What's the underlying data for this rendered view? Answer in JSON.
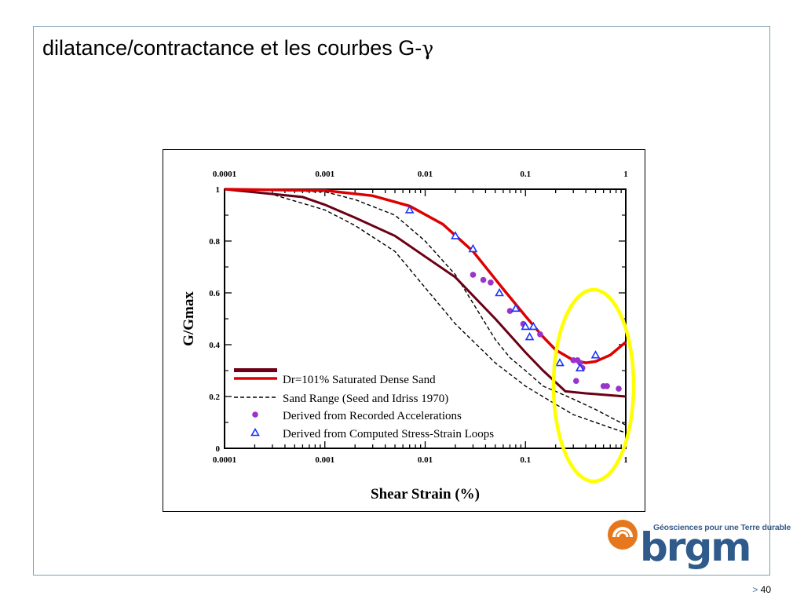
{
  "slide": {
    "title_text": "dilatance/contractance et les courbes G-",
    "title_symbol": "γ",
    "page_prefix": ">",
    "page_number": "40"
  },
  "logo": {
    "tagline": "Géosciences pour une Terre durable",
    "wordmark": "brgm",
    "colors": {
      "orange": "#e5781e",
      "blue": "#2f5a8c"
    }
  },
  "chart_data": {
    "type": "line",
    "xscale": "log",
    "xlim": [
      0.0001,
      1
    ],
    "ylim": [
      0,
      1
    ],
    "x_ticks": [
      "0.0001",
      "0.001",
      "0.01",
      "0.1",
      "1"
    ],
    "y_ticks": [
      "0",
      "0.2",
      "0.4",
      "0.6",
      "0.8",
      "1"
    ],
    "xlabel": "Shear Strain (%)",
    "ylabel": "G/Gmax",
    "colors": {
      "dense_sand": "#dd0000",
      "dense_sand_dark": "#6b0015",
      "sand_range": "#000000",
      "recorded": "#9933cc",
      "computed": "#1a33ff",
      "highlight": "#ffff00"
    },
    "legend": [
      "Dr=101% Saturated Dense Sand",
      "Sand Range (Seed and Idriss 1970)",
      "Derived from Recorded Accelerations",
      "Derived from Computed Stress-Strain Loops"
    ],
    "series": [
      {
        "style": "dense-sand-upper",
        "x": [
          0.0001,
          0.001,
          0.003,
          0.007,
          0.015,
          0.03,
          0.06,
          0.1,
          0.15,
          0.2,
          0.3,
          0.4,
          0.5,
          0.7,
          1
        ],
        "values": [
          1.0,
          0.995,
          0.975,
          0.935,
          0.865,
          0.76,
          0.615,
          0.51,
          0.43,
          0.38,
          0.34,
          0.33,
          0.335,
          0.36,
          0.41
        ]
      },
      {
        "style": "dense-sand-lower",
        "x": [
          0.0001,
          0.0006,
          0.001,
          0.002,
          0.005,
          0.01,
          0.02,
          0.05,
          0.1,
          0.15,
          0.25,
          0.4,
          0.6,
          1
        ],
        "values": [
          1.0,
          0.97,
          0.94,
          0.89,
          0.82,
          0.74,
          0.66,
          0.5,
          0.37,
          0.3,
          0.22,
          0.212,
          0.207,
          0.2
        ]
      },
      {
        "style": "sand-range-upper",
        "x": [
          0.0001,
          0.001,
          0.002,
          0.005,
          0.01,
          0.02,
          0.03,
          0.05,
          0.07,
          0.1,
          0.15,
          0.2,
          0.3,
          0.5,
          0.7,
          1
        ],
        "values": [
          1.0,
          0.99,
          0.96,
          0.9,
          0.8,
          0.67,
          0.56,
          0.42,
          0.35,
          0.3,
          0.24,
          0.22,
          0.19,
          0.15,
          0.12,
          0.09
        ]
      },
      {
        "style": "sand-range-lower",
        "x": [
          0.0001,
          0.0003,
          0.001,
          0.002,
          0.005,
          0.01,
          0.02,
          0.05,
          0.1,
          0.2,
          0.3,
          0.5,
          0.7,
          1
        ],
        "values": [
          1.0,
          0.98,
          0.92,
          0.86,
          0.76,
          0.62,
          0.48,
          0.33,
          0.24,
          0.17,
          0.13,
          0.1,
          0.08,
          0.06
        ]
      }
    ],
    "recorded_points": {
      "x": [
        0.03,
        0.038,
        0.045,
        0.07,
        0.095,
        0.14,
        0.3,
        0.33,
        0.35,
        0.37,
        0.32,
        0.6,
        0.65,
        0.85
      ],
      "y": [
        0.67,
        0.65,
        0.64,
        0.53,
        0.48,
        0.44,
        0.34,
        0.34,
        0.33,
        0.31,
        0.26,
        0.24,
        0.24,
        0.23
      ]
    },
    "computed_points": {
      "x": [
        0.007,
        0.02,
        0.03,
        0.055,
        0.08,
        0.1,
        0.11,
        0.12,
        0.22,
        0.35,
        0.5
      ],
      "y": [
        0.92,
        0.82,
        0.77,
        0.6,
        0.54,
        0.47,
        0.43,
        0.47,
        0.33,
        0.31,
        0.36
      ]
    }
  }
}
